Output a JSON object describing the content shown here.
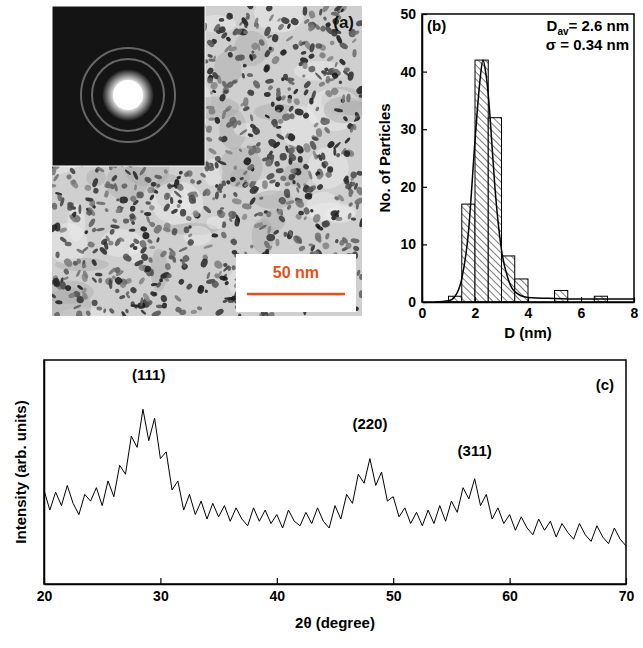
{
  "chart_data": [
    {
      "type": "image",
      "panel_label": "(a)",
      "xlim": [
        0,
        158
      ],
      "scale_bar": {
        "value": 50,
        "label": "50 nm"
      }
    },
    {
      "type": "histogram",
      "panel_label": "(b)",
      "bins": [
        1,
        1.5,
        2,
        2.5,
        3,
        3.5,
        4,
        4.5,
        5,
        5.5,
        6,
        6.5,
        7
      ],
      "values": [
        1,
        17,
        42,
        32,
        8,
        4,
        0,
        0,
        2,
        0,
        0,
        1
      ],
      "curve": {
        "x": [
          0.5,
          1,
          1.25,
          1.5,
          1.75,
          2,
          2.1,
          2.2,
          2.3,
          2.4,
          2.5,
          2.6,
          2.75,
          3,
          3.25,
          3.5,
          4,
          5,
          6,
          7,
          8
        ],
        "y": [
          0,
          0.2,
          1,
          4,
          12,
          28,
          34,
          39,
          42,
          40,
          36,
          30,
          20,
          9,
          4,
          1.8,
          0.8,
          0.6,
          0.5,
          0.5,
          0.5
        ]
      },
      "xlim": [
        0,
        8
      ],
      "xticks": [
        0,
        2,
        4,
        6,
        8
      ],
      "ylim": [
        0,
        50
      ],
      "yticks": [
        0,
        10,
        20,
        30,
        40,
        50
      ],
      "x_label": "D (nm)",
      "y_label": "No. of Particles",
      "annotations": [
        {
          "parts": [
            "D",
            "av",
            "= 2.6 nm"
          ]
        },
        {
          "parts": [
            "σ = 0.34 nm"
          ]
        }
      ]
    },
    {
      "type": "line",
      "panel_label": "(c)",
      "x": [
        20,
        20.5,
        21,
        21.5,
        22,
        22.5,
        23,
        23.5,
        24,
        24.5,
        25,
        25.5,
        26,
        26.5,
        27,
        27.5,
        28,
        28.5,
        29,
        29.5,
        30,
        30.5,
        31,
        31.5,
        32,
        32.5,
        33,
        33.5,
        34,
        34.5,
        35,
        35.5,
        36,
        36.5,
        37,
        37.5,
        38,
        38.5,
        39,
        39.5,
        40,
        40.5,
        41,
        41.5,
        42,
        42.5,
        43,
        43.5,
        44,
        44.5,
        45,
        45.5,
        46,
        46.5,
        47,
        47.5,
        48,
        48.5,
        49,
        49.5,
        50,
        50.5,
        51,
        51.5,
        52,
        52.5,
        53,
        53.5,
        54,
        54.5,
        55,
        55.5,
        56,
        56.5,
        57,
        57.5,
        58,
        58.5,
        59,
        59.5,
        60,
        60.5,
        61,
        61.5,
        62,
        62.5,
        63,
        63.5,
        64,
        64.5,
        65,
        65.5,
        66,
        66.5,
        67,
        67.5,
        68,
        68.5,
        69,
        69.5,
        70
      ],
      "values": [
        42,
        33,
        41,
        35,
        44,
        36,
        31,
        40,
        37,
        43,
        35,
        46,
        39,
        53,
        49,
        66,
        61,
        78,
        64,
        74,
        56,
        59,
        42,
        46,
        33,
        40,
        31,
        37,
        29,
        36,
        30,
        35,
        28,
        34,
        29,
        26,
        34,
        28,
        33,
        27,
        31,
        25,
        33,
        28,
        26,
        32,
        27,
        34,
        28,
        25,
        35,
        29,
        40,
        36,
        49,
        45,
        56,
        44,
        50,
        37,
        39,
        30,
        34,
        27,
        32,
        26,
        33,
        27,
        35,
        28,
        37,
        32,
        43,
        38,
        47,
        35,
        40,
        29,
        34,
        27,
        31,
        24,
        30,
        25,
        22,
        29,
        24,
        28,
        21,
        27,
        23,
        20,
        27,
        22,
        19,
        26,
        21,
        18,
        25,
        20,
        17
      ],
      "xlim": [
        20,
        70
      ],
      "xticks": [
        20,
        30,
        40,
        50,
        60,
        70
      ],
      "ylim": [
        0,
        100
      ],
      "tick_labels": "x",
      "x_label": "2θ (degree)",
      "y_label": "Intensity (arb. units)",
      "annotations": [
        {
          "text": "(111)",
          "x": 29,
          "y": 91
        },
        {
          "text": "(220)",
          "x": 48,
          "y": 69
        },
        {
          "text": "(311)",
          "x": 57,
          "y": 57
        }
      ]
    }
  ]
}
